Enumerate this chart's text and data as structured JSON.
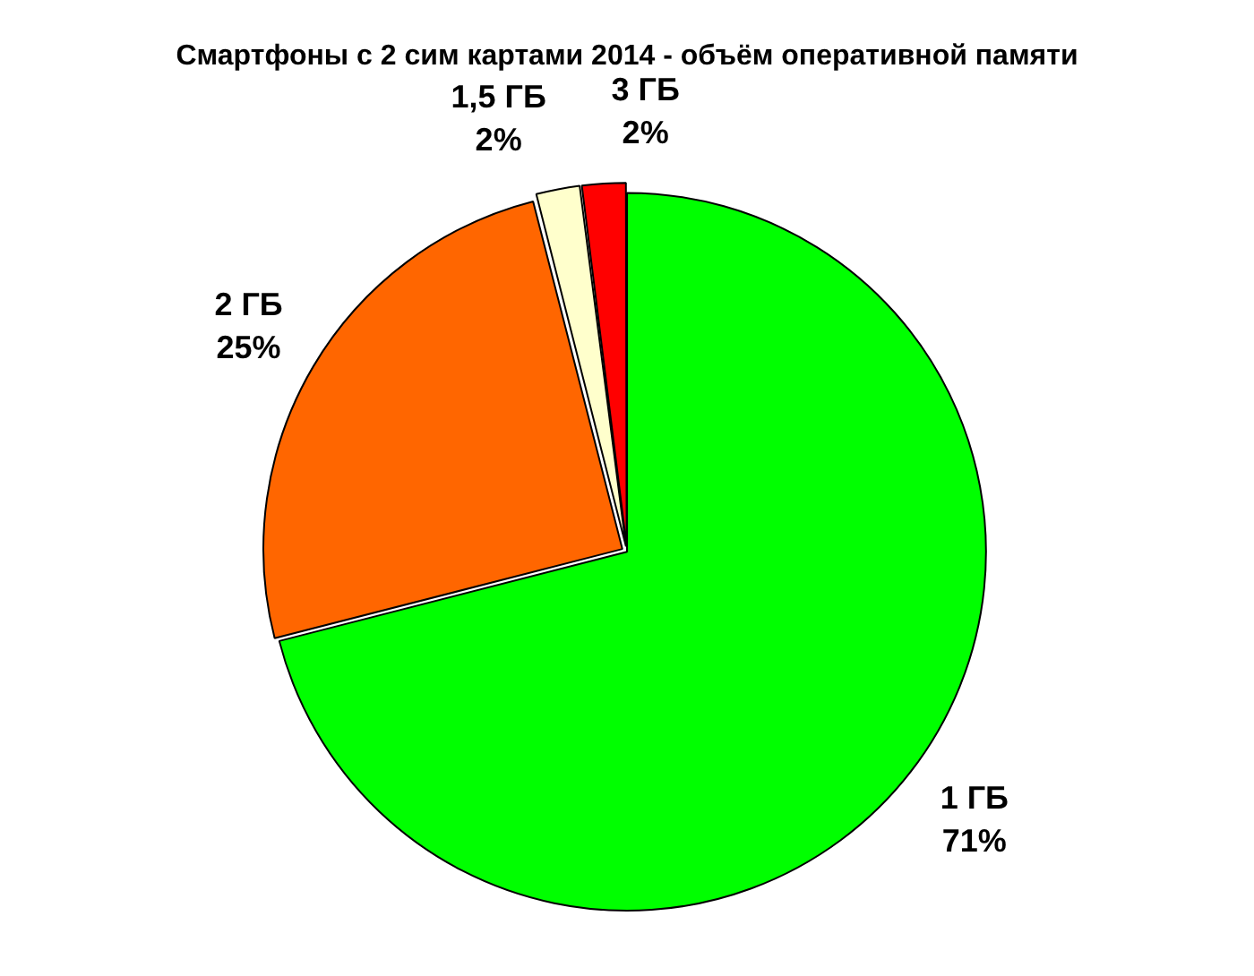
{
  "chart_data": {
    "type": "pie",
    "title": "Смартфоны с 2 сим картами 2014 - объём оперативной памяти",
    "categories": [
      "1 ГБ",
      "2 ГБ",
      "1,5 ГБ",
      "3 ГБ"
    ],
    "values": [
      71,
      25,
      2,
      2
    ],
    "colors": [
      "#00ff00",
      "#ff6600",
      "#ffffcc",
      "#ff0000"
    ],
    "value_labels": [
      "71%",
      "25%",
      "2%",
      "2%"
    ],
    "legend": false
  }
}
